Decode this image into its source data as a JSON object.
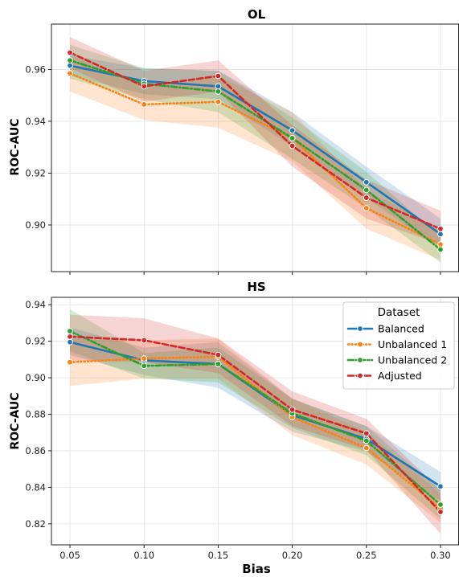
{
  "colors": {
    "Balanced": "#1f77b4",
    "Unbalanced 1": "#ff7f0e",
    "Unbalanced 2": "#2ca02c",
    "Adjusted": "#d62728"
  },
  "chart_data": [
    {
      "type": "line",
      "title": "OL",
      "xlabel": "",
      "ylabel": "ROC-AUC",
      "x": [
        0.05,
        0.1,
        0.15,
        0.2,
        0.25,
        0.3
      ],
      "x_tick_labels": [
        "0.05",
        "0.10",
        "0.15",
        "0.20",
        "0.25",
        "0.30"
      ],
      "xlim": [
        0.0375,
        0.3125
      ],
      "ylim": [
        0.882,
        0.9775
      ],
      "yticks": [
        0.9,
        0.92,
        0.94,
        0.96
      ],
      "y_tick_labels": [
        "0.90",
        "0.92",
        "0.94",
        "0.96"
      ],
      "grid": true,
      "series": [
        {
          "name": "Balanced",
          "style": "solid",
          "values": [
            0.9615,
            0.9555,
            0.9535,
            0.9365,
            0.9165,
            0.8965
          ],
          "ci_low": [
            0.9575,
            0.9505,
            0.9485,
            0.9305,
            0.9105,
            0.8905
          ],
          "ci_high": [
            0.9655,
            0.9605,
            0.9595,
            0.9435,
            0.9225,
            0.9025
          ]
        },
        {
          "name": "Unbalanced 1",
          "style": "dotted",
          "values": [
            0.9585,
            0.9465,
            0.9475,
            0.9335,
            0.9065,
            0.8925
          ],
          "ci_low": [
            0.9515,
            0.9405,
            0.9375,
            0.9245,
            0.8985,
            0.8865
          ],
          "ci_high": [
            0.9655,
            0.9535,
            0.9575,
            0.9435,
            0.9135,
            0.8985
          ]
        },
        {
          "name": "Unbalanced 2",
          "style": "dashdot",
          "values": [
            0.9635,
            0.9545,
            0.9515,
            0.9335,
            0.9135,
            0.8905
          ],
          "ci_low": [
            0.9565,
            0.9485,
            0.9435,
            0.9255,
            0.9065,
            0.8855
          ],
          "ci_high": [
            0.9695,
            0.9605,
            0.9595,
            0.9415,
            0.9205,
            0.8955
          ]
        },
        {
          "name": "Adjusted",
          "style": "dashed",
          "values": [
            0.9665,
            0.9535,
            0.9575,
            0.9305,
            0.9105,
            0.8985
          ],
          "ci_low": [
            0.9605,
            0.9475,
            0.9515,
            0.9225,
            0.9025,
            0.8925
          ],
          "ci_high": [
            0.9725,
            0.9595,
            0.9635,
            0.9385,
            0.9175,
            0.9055
          ]
        }
      ]
    },
    {
      "type": "line",
      "title": "HS",
      "xlabel": "Bias",
      "ylabel": "ROC-AUC",
      "x": [
        0.05,
        0.1,
        0.15,
        0.2,
        0.25,
        0.3
      ],
      "x_tick_labels": [
        "0.05",
        "0.10",
        "0.15",
        "0.20",
        "0.25",
        "0.30"
      ],
      "xlim": [
        0.0375,
        0.3125
      ],
      "ylim": [
        0.8085,
        0.944
      ],
      "yticks": [
        0.82,
        0.84,
        0.86,
        0.88,
        0.9,
        0.92,
        0.94
      ],
      "y_tick_labels": [
        "0.82",
        "0.84",
        "0.86",
        "0.88",
        "0.90",
        "0.92",
        "0.94"
      ],
      "grid": true,
      "legend": {
        "title": "Dataset",
        "placement": "top-right",
        "entries": [
          "Balanced",
          "Unbalanced 1",
          "Unbalanced 2",
          "Adjusted"
        ]
      },
      "series": [
        {
          "name": "Balanced",
          "style": "solid",
          "values": [
            0.9195,
            0.9095,
            0.9075,
            0.8795,
            0.8665,
            0.8405
          ],
          "ci_low": [
            0.9125,
            0.9015,
            0.8945,
            0.8705,
            0.8595,
            0.8325
          ],
          "ci_high": [
            0.9275,
            0.9165,
            0.9195,
            0.8885,
            0.8735,
            0.8485
          ]
        },
        {
          "name": "Unbalanced 1",
          "style": "dotted",
          "values": [
            0.9085,
            0.9105,
            0.9115,
            0.8785,
            0.8615,
            0.8285
          ],
          "ci_low": [
            0.8955,
            0.8995,
            0.8995,
            0.8685,
            0.8525,
            0.8205
          ],
          "ci_high": [
            0.9215,
            0.9205,
            0.9215,
            0.8885,
            0.8705,
            0.8365
          ]
        },
        {
          "name": "Unbalanced 2",
          "style": "dashdot",
          "values": [
            0.9255,
            0.9065,
            0.9075,
            0.8805,
            0.8655,
            0.8305
          ],
          "ci_low": [
            0.9145,
            0.8995,
            0.8975,
            0.8725,
            0.8575,
            0.8225
          ],
          "ci_high": [
            0.9375,
            0.9135,
            0.9165,
            0.8885,
            0.8735,
            0.8385
          ]
        },
        {
          "name": "Adjusted",
          "style": "dashed",
          "values": [
            0.9225,
            0.9205,
            0.9125,
            0.8825,
            0.8695,
            0.8265
          ],
          "ci_low": [
            0.9095,
            0.9085,
            0.9025,
            0.8735,
            0.8605,
            0.8145
          ],
          "ci_high": [
            0.9345,
            0.9325,
            0.9215,
            0.8925,
            0.8775,
            0.8385
          ]
        }
      ]
    }
  ]
}
